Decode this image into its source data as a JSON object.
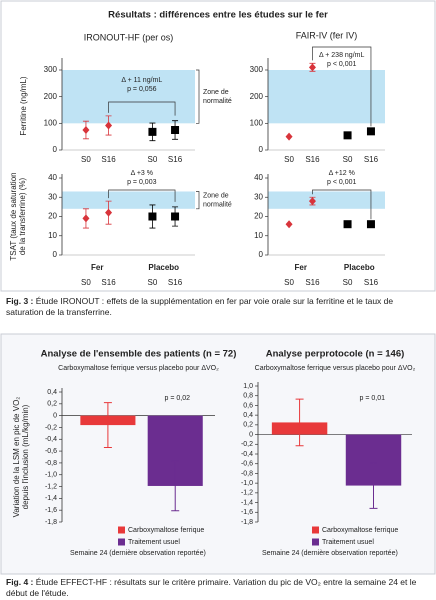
{
  "figure3_title": "Résultats : différences entre les études sur le fer",
  "figure3_label": "Fig. 3 :",
  "figure3_caption": "Étude IRONOUT : effets de la supplémentation en fer par voie orale sur la ferritine et le taux de saturation de la transferrine.",
  "figure4_label": "Fig. 4 :",
  "figure4_caption": "Étude EFFECT-HF : résultats sur le critère primaire. Variation du pic de VO₂ entre la semaine 24 et le début de l'étude.",
  "chart_data": [
    {
      "type": "errorpoint",
      "title": "IRONOUT-HF (per os)",
      "ylabel": [
        "Ferritine (ng/mL)"
      ],
      "ylim": [
        0,
        330
      ],
      "yticks": [
        0,
        100,
        200,
        300
      ],
      "band": [
        100,
        300
      ],
      "band_label": [
        "Zone de",
        "normalité"
      ],
      "annotation": [
        "Δ + 11 ng/mL",
        "p = 0,056"
      ],
      "series": [
        {
          "categories": [
            "S0",
            "S16"
          ],
          "color": "#d8343b",
          "marker": "diamond",
          "values": [
            75,
            92
          ],
          "errors": [
            33,
            36
          ]
        },
        {
          "categories": [
            "S0",
            "S16"
          ],
          "color": "#000000",
          "marker": "square",
          "values": [
            68,
            75
          ],
          "errors": [
            33,
            35
          ]
        }
      ]
    },
    {
      "type": "errorpoint",
      "title": "FAIR-IV (fer IV)",
      "ylim": [
        0,
        330
      ],
      "yticks": [
        0,
        100,
        200,
        300
      ],
      "band": [
        100,
        300
      ],
      "annotation": [
        "Δ + 238 ng/mL",
        "p < 0,001"
      ],
      "series": [
        {
          "categories": [
            "S0",
            "S16"
          ],
          "color": "#d8343b",
          "marker": "diamond",
          "values": [
            50,
            310
          ],
          "errors": [
            0,
            15
          ]
        },
        {
          "categories": [
            "S0",
            "S16"
          ],
          "color": "#000000",
          "marker": "square",
          "values": [
            55,
            70
          ],
          "errors": [
            0,
            0
          ]
        }
      ]
    },
    {
      "type": "errorpoint",
      "ylabel": [
        "TSAT (taux de saturation",
        "de la transferrine) (%)"
      ],
      "ylim": [
        0,
        40
      ],
      "yticks": [
        0,
        10,
        20,
        30,
        40
      ],
      "band": [
        24,
        33
      ],
      "band_label": [
        "Zone de",
        "normalité"
      ],
      "annotation": [
        "Δ +3 %",
        "p = 0,003"
      ],
      "series": [
        {
          "name": "Fer",
          "categories": [
            "S0",
            "S16"
          ],
          "color": "#d8343b",
          "marker": "diamond",
          "values": [
            19,
            22
          ],
          "errors": [
            5,
            6
          ]
        },
        {
          "name": "Placebo",
          "categories": [
            "S0",
            "S16"
          ],
          "color": "#000000",
          "marker": "square",
          "values": [
            20,
            20
          ],
          "errors": [
            6,
            5
          ]
        }
      ]
    },
    {
      "type": "errorpoint",
      "ylim": [
        0,
        40
      ],
      "yticks": [
        0,
        10,
        20,
        30,
        40
      ],
      "band": [
        24,
        33
      ],
      "annotation": [
        "Δ +12 %",
        "p < 0,001"
      ],
      "series": [
        {
          "name": "Fer",
          "categories": [
            "S0",
            "S16"
          ],
          "color": "#d8343b",
          "marker": "diamond",
          "values": [
            16,
            28
          ],
          "errors": [
            0,
            2
          ]
        },
        {
          "name": "Placebo",
          "categories": [
            "S0",
            "S16"
          ],
          "color": "#000000",
          "marker": "square",
          "values": [
            16,
            16
          ],
          "errors": [
            0,
            0
          ]
        }
      ]
    },
    {
      "type": "bar",
      "title": "Analyse de l'ensemble des patients (n = 72)",
      "subtitle": "Carboxymaltose ferrique versus placebo pour ΔVO₂",
      "ylabel": [
        "Variation de la LSM en pic de VO₂",
        "depuis l'inclusion (mL/kg/min)"
      ],
      "ylim": [
        -1.8,
        0.4
      ],
      "yticks": [
        {
          "value": 0.4,
          "label": "0,4"
        },
        {
          "value": 0.2,
          "label": "0,2"
        },
        0,
        {
          "value": -0.2,
          "label": "-0,2"
        },
        {
          "value": -0.4,
          "label": "-0,4"
        },
        {
          "value": -0.6,
          "label": "-0,6"
        },
        {
          "value": -0.8,
          "label": "-0,8"
        },
        {
          "value": -1.0,
          "label": "-1,0"
        },
        {
          "value": -1.2,
          "label": "-1,2"
        },
        {
          "value": -1.4,
          "label": "-1,4"
        },
        {
          "value": -1.6,
          "label": "-1,6"
        },
        {
          "value": -1.8,
          "label": "-1,8"
        }
      ],
      "annotation": [
        "p = 0,02"
      ],
      "note": "Semaine 24 (dernière observation reportée)",
      "series": [
        {
          "name": "Carboxymaltose ferrique",
          "color": "#e8393a",
          "values": [
            -0.16
          ],
          "errors": [
            0.38
          ]
        },
        {
          "name": "Traitement usuel",
          "color": "#6b2d90",
          "values": [
            -1.19
          ],
          "errors": [
            0.42
          ]
        }
      ]
    },
    {
      "type": "bar",
      "title": "Analyse perprotocole (n = 146)",
      "subtitle": "Carboxymaltose ferrique versus placebo pour ΔVO₂",
      "ylim": [
        -1.8,
        1.0
      ],
      "yticks": [
        {
          "value": 1.0,
          "label": "1,0"
        },
        {
          "value": 0.8,
          "label": "0,8"
        },
        {
          "value": 0.6,
          "label": "0,6"
        },
        {
          "value": 0.4,
          "label": "0,4"
        },
        {
          "value": 0.2,
          "label": "0,2"
        },
        0,
        {
          "value": -0.2,
          "label": "-0,2"
        },
        {
          "value": -0.4,
          "label": "-0,4"
        },
        {
          "value": -0.6,
          "label": "-0,6"
        },
        {
          "value": -0.8,
          "label": "-0,8"
        },
        {
          "value": -1.0,
          "label": "-1,0"
        },
        {
          "value": -1.2,
          "label": "-1,2"
        },
        {
          "value": -1.4,
          "label": "-1,4"
        },
        {
          "value": -1.6,
          "label": "-1,6"
        },
        {
          "value": -1.8,
          "label": "-1,8"
        }
      ],
      "annotation": [
        "p = 0,01"
      ],
      "note": "Semaine 24 (dernière observation reportée)",
      "series": [
        {
          "name": "Carboxymaltose ferrique",
          "color": "#e8393a",
          "values": [
            0.25
          ],
          "errors": [
            0.48
          ]
        },
        {
          "name": "Traitement usuel",
          "color": "#6b2d90",
          "values": [
            -1.05
          ],
          "errors": [
            0.47
          ]
        }
      ]
    }
  ]
}
